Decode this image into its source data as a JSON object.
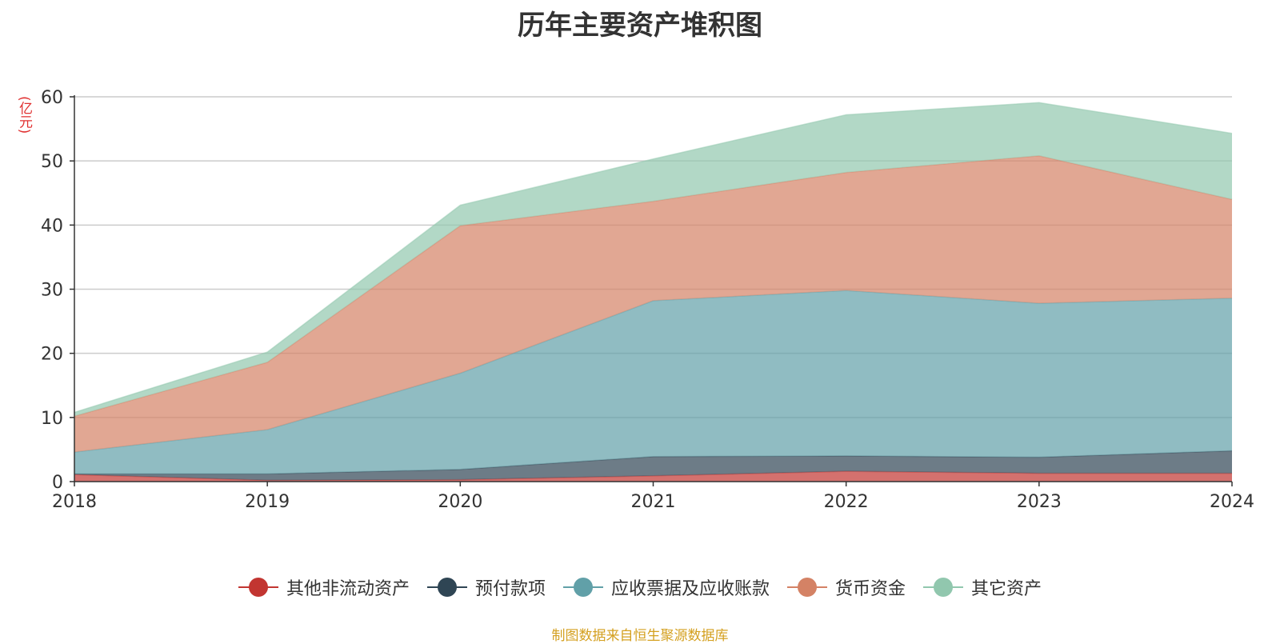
{
  "chart_data": {
    "type": "area",
    "stacked": true,
    "title": "历年主要资产堆积图",
    "unit": "(亿元)",
    "x": [
      "2018",
      "2019",
      "2020",
      "2021",
      "2022",
      "2023",
      "2024"
    ],
    "ylim": [
      0,
      60
    ],
    "yticks": [
      0,
      10,
      20,
      30,
      40,
      50,
      60
    ],
    "grid": true,
    "legend_position": "bottom",
    "series": [
      {
        "name": "其他非流动资产",
        "color": "#c23531",
        "values": [
          1.1,
          0.2,
          0.3,
          0.9,
          1.6,
          1.3,
          1.3
        ]
      },
      {
        "name": "预付款项",
        "color": "#2f4554",
        "values": [
          0.1,
          1.0,
          1.6,
          3.0,
          2.4,
          2.5,
          3.5
        ]
      },
      {
        "name": "应收票据及应收账款",
        "color": "#61a0a8",
        "values": [
          3.4,
          6.9,
          15.0,
          24.3,
          25.8,
          24.0,
          23.8
        ]
      },
      {
        "name": "货币资金",
        "color": "#d48265",
        "values": [
          5.6,
          10.5,
          23.0,
          15.5,
          18.4,
          23.0,
          15.4
        ]
      },
      {
        "name": "其它资产",
        "color": "#91c7ae",
        "values": [
          0.6,
          1.6,
          3.2,
          6.6,
          9.0,
          8.3,
          10.3
        ]
      }
    ],
    "source": "制图数据来自恒生聚源数据库"
  }
}
